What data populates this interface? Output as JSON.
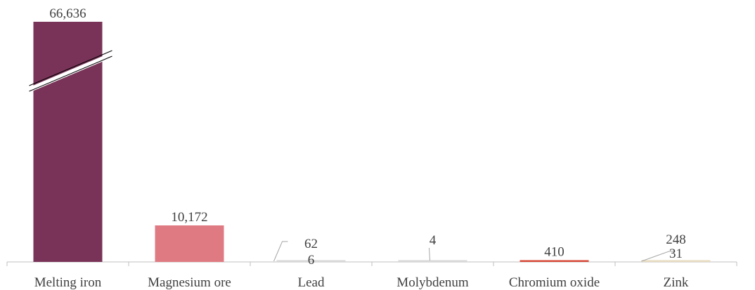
{
  "chart_data": {
    "type": "bar",
    "title": "",
    "xlabel": "",
    "ylabel": "",
    "axis_break": true,
    "categories": [
      "Melting iron",
      "Magnesium ore",
      "Lead",
      "Molybdenum",
      "Chromium oxide",
      "Zink"
    ],
    "bars": [
      {
        "category": "Melting iron",
        "value": 66636,
        "label": "66,636",
        "color": "#7a3358"
      },
      {
        "category": "Magnesium ore",
        "value": 10172,
        "label": "10,172",
        "color": "#e07a82"
      },
      {
        "category": "Lead",
        "value": 6,
        "label": "6",
        "color": "#d8d8d8",
        "sub_value": 62,
        "sub_label": "62"
      },
      {
        "category": "Molybdenum",
        "value": 4,
        "label": "4",
        "color": "#d8d8d8"
      },
      {
        "category": "Chromium oxide",
        "value": 410,
        "label": "410",
        "color": "#d84a3a"
      },
      {
        "category": "Zink",
        "value": 31,
        "label": "31",
        "color": "#e8dcc0",
        "sub_value": 248,
        "sub_label": "248"
      }
    ],
    "grid": false,
    "legend": "none"
  }
}
